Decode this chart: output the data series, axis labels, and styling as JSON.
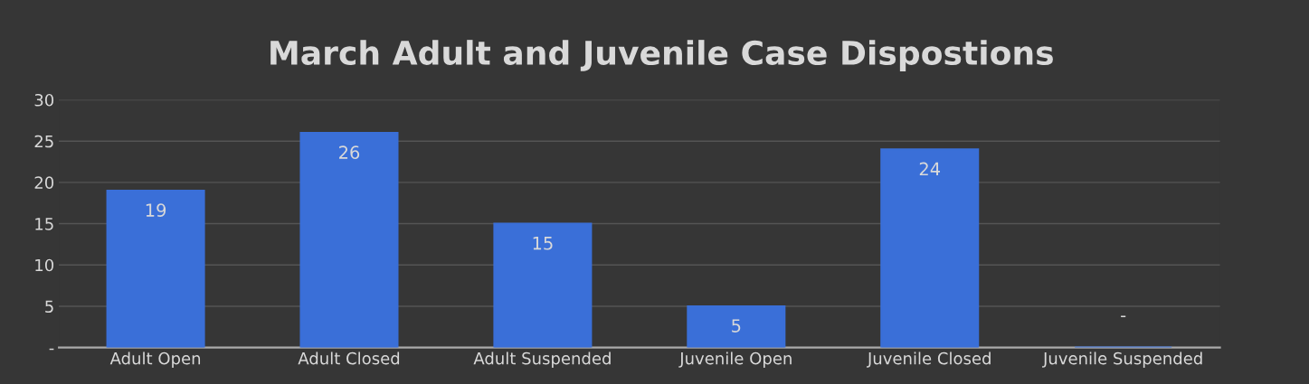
{
  "chart_data": {
    "type": "bar",
    "title": "March Adult and Juvenile Case Dispostions",
    "categories": [
      "Adult Open",
      "Adult Closed",
      "Adult Suspended",
      "Juvenile Open",
      "Juvenile Closed",
      "Juvenile Suspended"
    ],
    "values": [
      19,
      26,
      15,
      5,
      24,
      0
    ],
    "color": "#3a6fd8",
    "value_labels": [
      "19",
      "26",
      "15",
      "5",
      "24",
      "-"
    ],
    "ylim": [
      0,
      30
    ],
    "yticks": [
      {
        "value": 0,
        "label": "-"
      },
      5,
      10,
      15,
      20,
      25,
      30
    ],
    "grid": "y"
  }
}
